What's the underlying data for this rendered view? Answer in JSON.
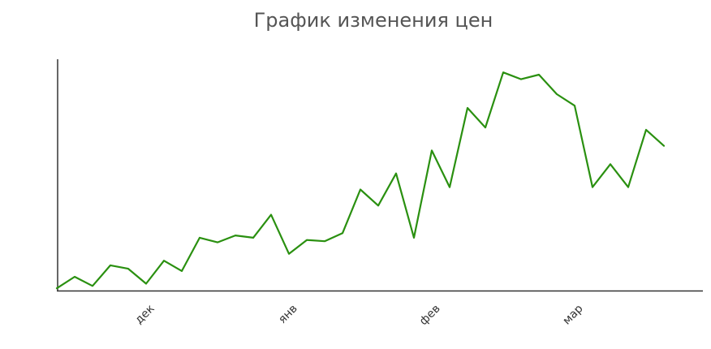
{
  "chart_data": {
    "type": "line",
    "title": "График изменения цен",
    "categories": [
      null,
      null,
      null,
      null,
      null,
      null,
      "дек",
      null,
      null,
      null,
      null,
      null,
      null,
      null,
      "янв",
      null,
      null,
      null,
      null,
      null,
      null,
      null,
      "фев",
      null,
      null,
      null,
      null,
      null,
      null,
      null,
      "мар",
      null,
      null,
      null,
      null
    ],
    "values": [
      1,
      6,
      2,
      11,
      9.5,
      3,
      13,
      8.5,
      23,
      21,
      24,
      23,
      33,
      16,
      22,
      21.5,
      25,
      44,
      37,
      51,
      23,
      61,
      45,
      79.5,
      71,
      95,
      92,
      94,
      85.5,
      80.5,
      45,
      55,
      45,
      70,
      63
    ],
    "color": "#2a9010",
    "ylim": [
      0,
      100
    ]
  }
}
